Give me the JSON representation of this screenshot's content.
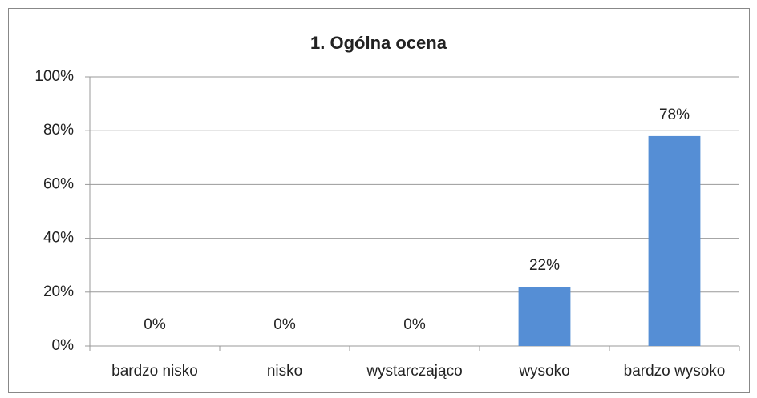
{
  "chart_data": {
    "type": "bar",
    "title": "1. Ogólna ocena",
    "categories": [
      "bardzo nisko",
      "nisko",
      "wystarczająco",
      "wysoko",
      "bardzo wysoko"
    ],
    "values": [
      0,
      0,
      0,
      22,
      78
    ],
    "value_labels": [
      "0%",
      "0%",
      "0%",
      "22%",
      "78%"
    ],
    "color": "#558ed5",
    "ylim": [
      0,
      100
    ],
    "yticks": [
      {
        "value": 0,
        "label": "0%"
      },
      {
        "value": 20,
        "label": "20%"
      },
      {
        "value": 40,
        "label": "40%"
      },
      {
        "value": 60,
        "label": "60%"
      },
      {
        "value": 80,
        "label": "80%"
      },
      {
        "value": 100,
        "label": "100%"
      }
    ],
    "grid": true
  }
}
